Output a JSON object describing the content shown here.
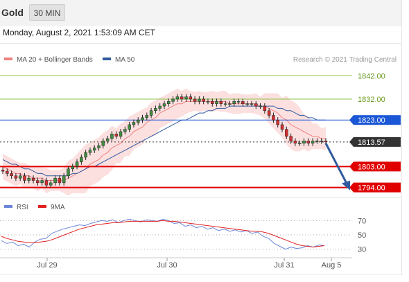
{
  "header": {
    "symbol": "Gold",
    "interval": "30 MIN"
  },
  "datetime": "Monday, August 2, 2021 1:53:09 AM CET",
  "legend": [
    {
      "label": "MA 20 + Bollinger Bands",
      "color": "#f08080"
    },
    {
      "label": "MA 50",
      "color": "#2f5a9e"
    }
  ],
  "credit": "Research © 2021 Trading Central",
  "rsi_legend": [
    {
      "label": "RSI",
      "color": "#6a86d8"
    },
    {
      "label": "9MA",
      "color": "#e02020"
    }
  ],
  "chart_data": {
    "type": "line",
    "title": "",
    "ylim": [
      1790,
      1846
    ],
    "x_ticks": [
      "Jul 29",
      "Jul 30",
      "Jul 31",
      "Aug 5"
    ],
    "levels": [
      {
        "value": 1842.0,
        "label": "1842.00",
        "role": "resistance",
        "color": "#8bc34a"
      },
      {
        "value": 1832.0,
        "label": "1832.00",
        "role": "resistance",
        "color": "#8bc34a"
      },
      {
        "value": 1823.0,
        "label": "1823.00",
        "role": "pivot",
        "color": "#1a56d6"
      },
      {
        "value": 1813.57,
        "label": "1813.57",
        "role": "last price",
        "color": "#333333"
      },
      {
        "value": 1803.0,
        "label": "1803.00",
        "role": "support",
        "color": "#e00000"
      },
      {
        "value": 1794.0,
        "label": "1794.00",
        "role": "support",
        "color": "#e00000"
      }
    ],
    "price_series": {
      "name": "Gold 30 MIN",
      "close": [
        1801,
        1800,
        1799,
        1798,
        1799,
        1797,
        1798,
        1797,
        1796,
        1797,
        1795,
        1796,
        1798,
        1796,
        1799,
        1802,
        1803,
        1805,
        1807,
        1809,
        1810,
        1811,
        1812,
        1814,
        1815,
        1817,
        1816,
        1818,
        1819,
        1821,
        1822,
        1823,
        1824,
        1825,
        1827,
        1828,
        1829,
        1830,
        1831,
        1832,
        1833,
        1832,
        1833,
        1832,
        1831,
        1832,
        1831,
        1831,
        1830,
        1831,
        1830,
        1830,
        1830,
        1831,
        1831,
        1830,
        1830,
        1830,
        1829,
        1829,
        1827,
        1825,
        1823,
        1821,
        1819,
        1816,
        1814,
        1813,
        1813,
        1814,
        1813,
        1814,
        1814,
        1814,
        1813.57
      ]
    },
    "ma20": [
      1803,
      1802,
      1801,
      1800,
      1800,
      1799,
      1799,
      1798,
      1798,
      1798,
      1797,
      1797,
      1797,
      1797,
      1797,
      1798,
      1799,
      1800,
      1801,
      1802,
      1804,
      1805,
      1806,
      1808,
      1809,
      1811,
      1812,
      1813,
      1815,
      1816,
      1818,
      1819,
      1820,
      1822,
      1823,
      1824,
      1826,
      1827,
      1828,
      1829,
      1830,
      1830,
      1831,
      1831,
      1831,
      1831,
      1831,
      1831,
      1831,
      1831,
      1831,
      1831,
      1830,
      1830,
      1830,
      1830,
      1830,
      1830,
      1830,
      1829,
      1829,
      1828,
      1827,
      1826,
      1824,
      1823,
      1821,
      1820,
      1819,
      1818,
      1817,
      1816,
      1816,
      1815,
      1815
    ],
    "ma50": [
      1806,
      1805,
      1804,
      1804,
      1803,
      1802,
      1802,
      1801,
      1800,
      1800,
      1799,
      1799,
      1799,
      1799,
      1799,
      1799,
      1800,
      1800,
      1801,
      1802,
      1803,
      1803,
      1804,
      1805,
      1806,
      1807,
      1808,
      1809,
      1810,
      1811,
      1812,
      1813,
      1814,
      1815,
      1816,
      1817,
      1818,
      1819,
      1820,
      1821,
      1822,
      1823,
      1823,
      1824,
      1825,
      1826,
      1826,
      1827,
      1827,
      1828,
      1828,
      1828,
      1829,
      1829,
      1829,
      1829,
      1829,
      1829,
      1829,
      1829,
      1829,
      1829,
      1829,
      1828,
      1828,
      1827,
      1827,
      1826,
      1825,
      1825,
      1824,
      1824,
      1823,
      1823,
      1823
    ],
    "rsi": {
      "ylim": [
        20,
        80
      ],
      "levels": [
        70,
        50,
        30
      ],
      "rsi": [
        42,
        38,
        40,
        35,
        37,
        33,
        40,
        44,
        45,
        52,
        55,
        58,
        60,
        62,
        64,
        63,
        66,
        68,
        70,
        69,
        71,
        67,
        70,
        72,
        70,
        68,
        71,
        70,
        69,
        72,
        70,
        66,
        67,
        62,
        64,
        60,
        62,
        58,
        60,
        56,
        58,
        55,
        57,
        54,
        56,
        52,
        54,
        48,
        45,
        38,
        34,
        30,
        33,
        31,
        32,
        35,
        33,
        36,
        35
      ],
      "ma9": [
        48,
        45,
        43,
        41,
        40,
        39,
        39,
        40,
        41,
        43,
        46,
        49,
        52,
        55,
        58,
        60,
        62,
        64,
        65,
        66,
        67,
        67,
        68,
        69,
        69,
        69,
        69,
        69,
        69,
        70,
        69,
        69,
        68,
        67,
        66,
        65,
        64,
        63,
        62,
        61,
        60,
        59,
        58,
        57,
        56,
        55,
        55,
        54,
        52,
        49,
        46,
        43,
        40,
        37,
        35,
        34,
        33,
        34,
        35
      ]
    },
    "projection": {
      "from": 1813.57,
      "to": 1794.0,
      "direction": "down"
    }
  }
}
